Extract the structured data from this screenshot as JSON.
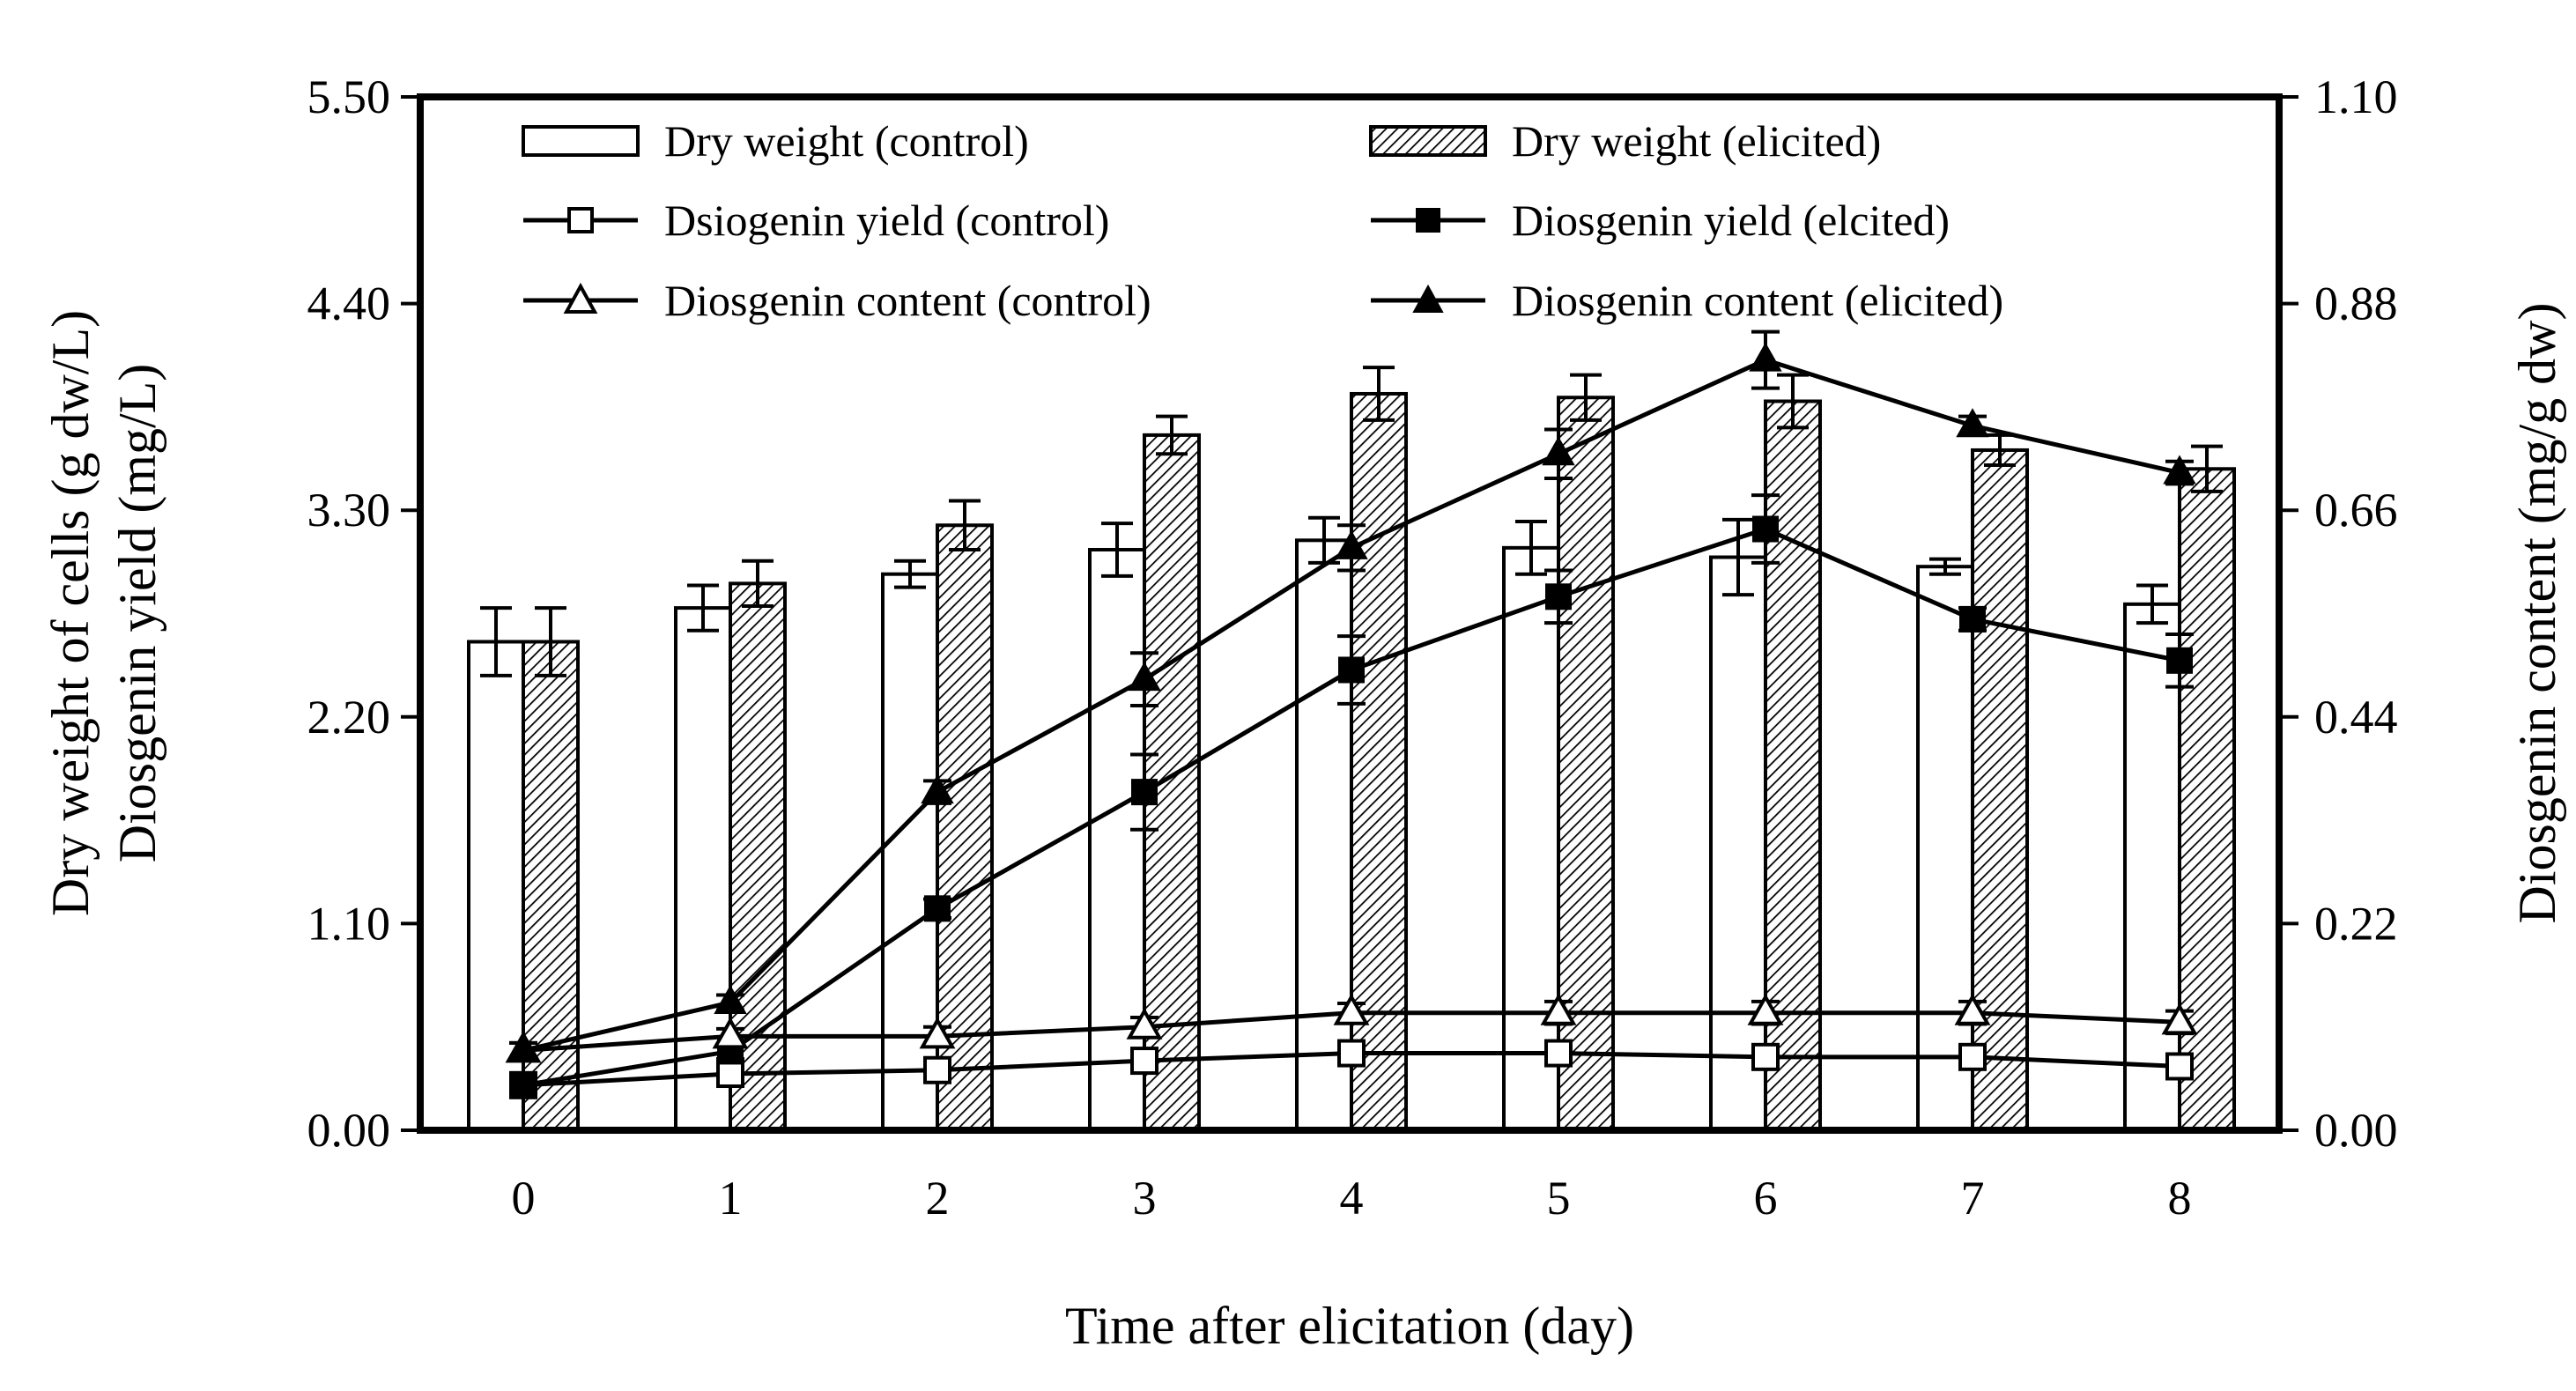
{
  "chart_data": {
    "type": "bar+line",
    "title": "",
    "xlabel": "Time after elicitation (day)",
    "ylabel_left_line1": "Dry weight of cells (g dw/L)",
    "ylabel_left_line2": "Diosgenin yield (mg/L)",
    "ylabel_right": "Diosgenin content (mg/g dw)",
    "categories": [
      "0",
      "1",
      "2",
      "3",
      "4",
      "5",
      "6",
      "7",
      "8"
    ],
    "ylim_left": [
      0,
      5.5
    ],
    "ylim_right": [
      0,
      1.1
    ],
    "yticks_left": [
      "0.00",
      "1.10",
      "2.20",
      "3.30",
      "4.40",
      "5.50"
    ],
    "yticks_right": [
      "0.00",
      "0.22",
      "0.44",
      "0.66",
      "0.88",
      "1.10"
    ],
    "legend": {
      "position": "top",
      "entries": [
        "Dry weight (control)",
        "Dry weight (elicited)",
        "Dsiogenin yield (control)",
        "Diosgenin yield (elcited)",
        "Diosgenin content (control)",
        "Diosgenin content (elicited)"
      ]
    },
    "series": [
      {
        "name": "Dry weight (control)",
        "kind": "bar",
        "fill": "white",
        "axis": "left",
        "values": [
          2.6,
          2.78,
          2.96,
          3.09,
          3.14,
          3.1,
          3.05,
          3.0,
          2.8
        ],
        "errors": [
          0.18,
          0.12,
          0.07,
          0.14,
          0.12,
          0.14,
          0.2,
          0.04,
          0.1
        ]
      },
      {
        "name": "Dry weight (elicited)",
        "kind": "bar",
        "fill": "hatched",
        "axis": "left",
        "values": [
          2.6,
          2.91,
          3.22,
          3.7,
          3.92,
          3.9,
          3.88,
          3.62,
          3.52
        ],
        "errors": [
          0.18,
          0.12,
          0.13,
          0.1,
          0.14,
          0.12,
          0.14,
          0.08,
          0.12
        ]
      },
      {
        "name": "Dsiogenin yield (control)",
        "kind": "line",
        "marker": "square-open",
        "axis": "left",
        "values": [
          0.24,
          0.3,
          0.32,
          0.37,
          0.41,
          0.41,
          0.39,
          0.39,
          0.34
        ],
        "errors": [
          0.04,
          0.03,
          0.03,
          0.04,
          0.04,
          0.04,
          0.04,
          0.04,
          0.03
        ]
      },
      {
        "name": "Diosgenin yield (elcited)",
        "kind": "line",
        "marker": "square-filled",
        "axis": "left",
        "values": [
          0.24,
          0.42,
          1.18,
          1.8,
          2.45,
          2.84,
          3.2,
          2.72,
          2.5
        ],
        "errors": [
          0.04,
          0.04,
          0.05,
          0.2,
          0.18,
          0.14,
          0.18,
          0.06,
          0.14
        ]
      },
      {
        "name": "Diosgenin content (control)",
        "kind": "line",
        "marker": "triangle-open",
        "axis": "right",
        "values": [
          0.085,
          0.1,
          0.1,
          0.11,
          0.125,
          0.125,
          0.125,
          0.125,
          0.115
        ],
        "errors": [
          0.008,
          0.008,
          0.01,
          0.01,
          0.01,
          0.012,
          0.012,
          0.012,
          0.012
        ]
      },
      {
        "name": "Diosgenin content (elicited)",
        "kind": "line",
        "marker": "triangle-filled",
        "axis": "right",
        "values": [
          0.085,
          0.136,
          0.36,
          0.48,
          0.62,
          0.72,
          0.82,
          0.75,
          0.7
        ],
        "errors": [
          0.008,
          0.008,
          0.012,
          0.028,
          0.024,
          0.026,
          0.03,
          0.01,
          0.012
        ]
      }
    ]
  }
}
